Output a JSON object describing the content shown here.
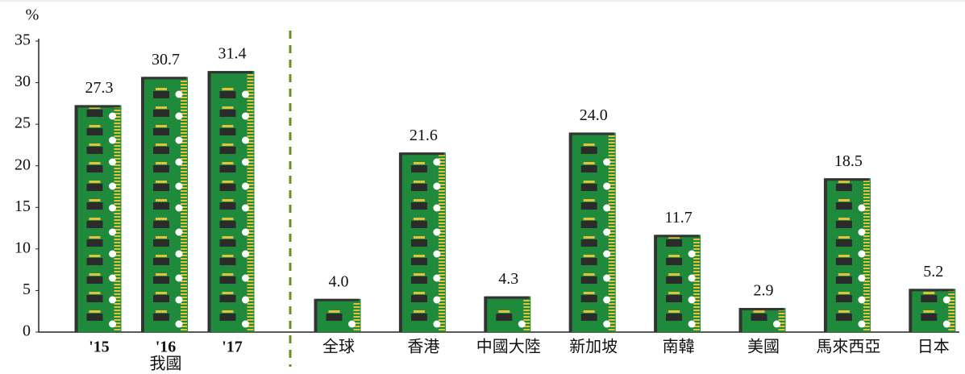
{
  "chart_data": {
    "type": "bar",
    "y_unit": "%",
    "categories": [
      "'15",
      "'16",
      "'17",
      "全球",
      "香港",
      "中國大陸",
      "新加坡",
      "南韓",
      "美國",
      "馬來西亞",
      "日本"
    ],
    "group_label": "我國",
    "values": [
      27.3,
      30.7,
      31.4,
      4.0,
      21.6,
      4.3,
      24.0,
      11.7,
      2.9,
      18.5,
      5.2
    ],
    "value_labels": [
      "27.3",
      "30.7",
      "31.4",
      "4.0",
      "21.6",
      "4.3",
      "24.0",
      "11.7",
      "2.9",
      "18.5",
      "5.2"
    ],
    "color": "#1f8a3c",
    "ylim": [
      0,
      35
    ],
    "yticks": [
      0,
      5,
      10,
      15,
      20,
      25,
      30,
      35
    ]
  }
}
